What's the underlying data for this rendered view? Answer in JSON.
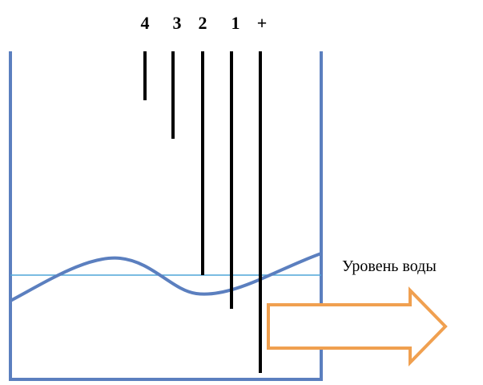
{
  "electrodes": [
    {
      "id": "4",
      "label": "4"
    },
    {
      "id": "3",
      "label": "3"
    },
    {
      "id": "2",
      "label": "2"
    },
    {
      "id": "1",
      "label": "1"
    },
    {
      "id": "plus",
      "label": "+"
    }
  ],
  "water_level_label": "Уровень воды",
  "colors": {
    "tank": "#5B7FBF",
    "water_line": "#4EA6D8",
    "electrode": "#000000",
    "arrow_fill": "#FFFFFF",
    "arrow_stroke": "#F0A050"
  }
}
